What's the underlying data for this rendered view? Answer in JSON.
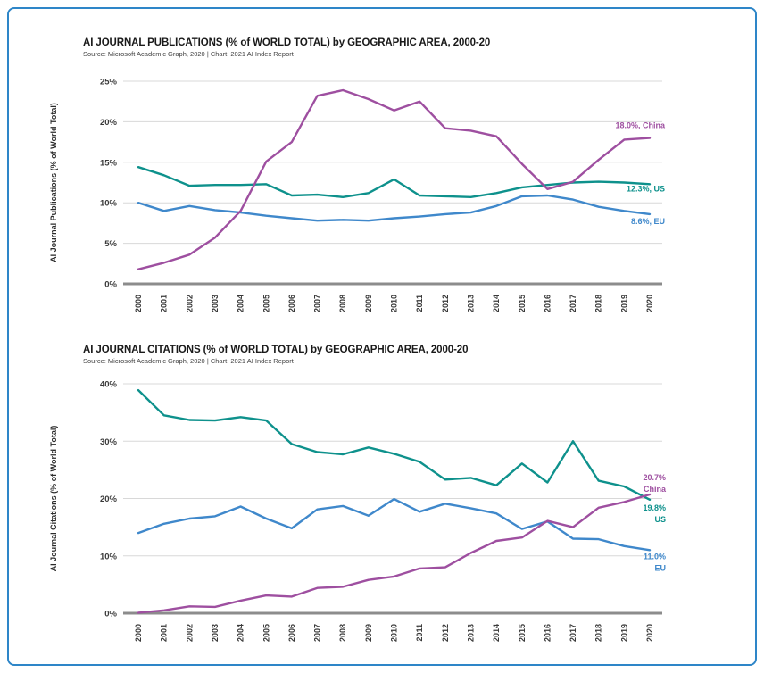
{
  "figure": {
    "border_color": "#2e86c8",
    "background": "#ffffff"
  },
  "chart_data": [
    {
      "type": "line",
      "title": "AI JOURNAL PUBLICATIONS (% of WORLD TOTAL) by GEOGRAPHIC AREA, 2000-20",
      "source": "Source: Microsoft Academic Graph, 2020 | Chart: 2021 AI Index Report",
      "ylabel": "AI Journal Publications (% of World Total)",
      "x": [
        "2000",
        "2001",
        "2002",
        "2003",
        "2004",
        "2005",
        "2006",
        "2007",
        "2008",
        "2009",
        "2010",
        "2011",
        "2012",
        "2013",
        "2014",
        "2015",
        "2016",
        "2017",
        "2018",
        "2019",
        "2020"
      ],
      "ylim": [
        0,
        25
      ],
      "yticks": [
        0,
        5,
        10,
        15,
        20,
        25
      ],
      "ytick_suffix": "%",
      "grid": true,
      "legend": "end-of-line-labels",
      "series": [
        {
          "name": "US",
          "color": "#0e918c",
          "values": [
            14.4,
            13.4,
            12.1,
            12.2,
            12.2,
            12.3,
            10.9,
            11.0,
            10.7,
            11.2,
            12.9,
            10.9,
            10.8,
            10.7,
            11.2,
            11.9,
            12.2,
            12.5,
            12.6,
            12.5,
            12.3
          ],
          "end_label": [
            "12.3%, US"
          ]
        },
        {
          "name": "EU",
          "color": "#3f88cb",
          "values": [
            10.0,
            9.0,
            9.6,
            9.1,
            8.8,
            8.4,
            8.1,
            7.8,
            7.9,
            7.8,
            8.1,
            8.3,
            8.6,
            8.8,
            9.6,
            10.8,
            10.9,
            10.4,
            9.5,
            9.0,
            8.6
          ],
          "end_label": [
            "8.6%, EU"
          ]
        },
        {
          "name": "China",
          "color": "#9e4fa0",
          "values": [
            1.8,
            2.6,
            3.6,
            5.7,
            9.0,
            15.1,
            17.5,
            23.2,
            23.9,
            22.8,
            21.4,
            22.5,
            19.2,
            18.9,
            18.2,
            14.8,
            11.7,
            12.6,
            15.3,
            17.8,
            18.0
          ],
          "end_label": [
            "18.0%, China"
          ]
        }
      ]
    },
    {
      "type": "line",
      "title": "AI JOURNAL CITATIONS (% of WORLD TOTAL) by GEOGRAPHIC AREA, 2000-20",
      "source": "Source: Microsoft Academic Graph, 2020 | Chart: 2021 AI Index Report",
      "ylabel": "AI Journal Citations (% of World Total)",
      "x": [
        "2000",
        "2001",
        "2002",
        "2003",
        "2004",
        "2005",
        "2006",
        "2007",
        "2008",
        "2009",
        "2010",
        "2011",
        "2012",
        "2013",
        "2014",
        "2015",
        "2016",
        "2017",
        "2018",
        "2019",
        "2020"
      ],
      "ylim": [
        0,
        40
      ],
      "yticks": [
        0,
        10,
        20,
        30,
        40
      ],
      "ytick_suffix": "%",
      "grid": true,
      "legend": "end-of-line-labels",
      "series": [
        {
          "name": "US",
          "color": "#0e918c",
          "values": [
            38.9,
            34.5,
            33.7,
            33.6,
            34.2,
            33.6,
            29.5,
            28.1,
            27.7,
            28.9,
            27.8,
            26.4,
            23.3,
            23.6,
            22.3,
            26.1,
            22.8,
            30.0,
            23.1,
            22.1,
            19.8
          ],
          "end_label": [
            "19.8%",
            "US"
          ]
        },
        {
          "name": "EU",
          "color": "#3f88cb",
          "values": [
            14.0,
            15.6,
            16.5,
            16.9,
            18.6,
            16.5,
            14.8,
            18.1,
            18.7,
            17.0,
            19.9,
            17.7,
            19.1,
            18.3,
            17.4,
            14.7,
            16.0,
            13.0,
            12.9,
            11.7,
            11.0
          ],
          "end_label": [
            "11.0%",
            "EU"
          ]
        },
        {
          "name": "China",
          "color": "#9e4fa0",
          "values": [
            0.1,
            0.5,
            1.2,
            1.1,
            2.2,
            3.1,
            2.9,
            4.4,
            4.6,
            5.8,
            6.4,
            7.8,
            8.0,
            10.5,
            12.6,
            13.2,
            16.1,
            15.0,
            18.4,
            19.4,
            20.7
          ],
          "end_label": [
            "20.7%",
            "China"
          ]
        }
      ]
    }
  ]
}
